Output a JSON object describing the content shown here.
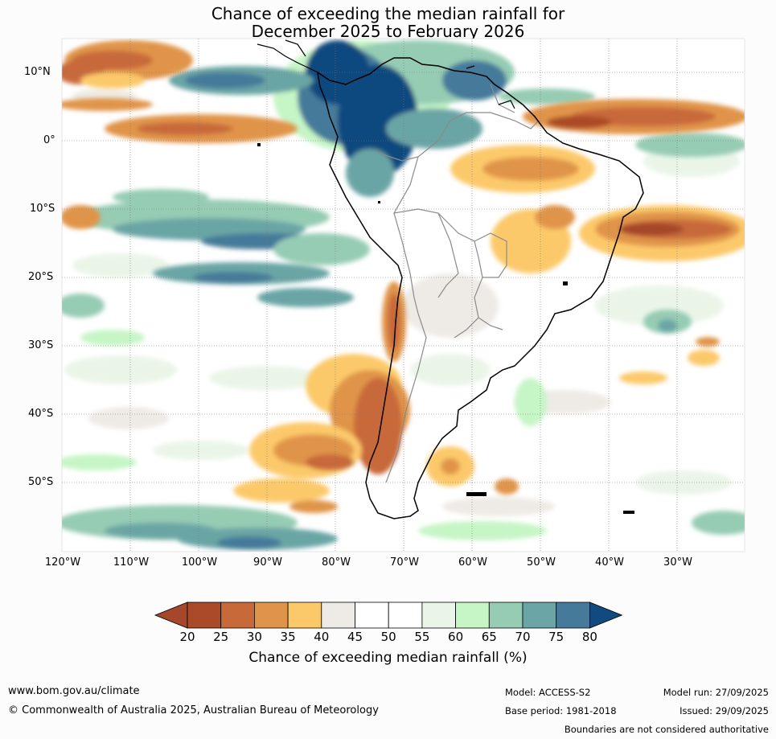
{
  "title": {
    "line1": "Chance of exceeding the median rainfall for",
    "line2": "December 2025 to February 2026"
  },
  "map": {
    "region": "South America",
    "lat_labels": [
      "10°N",
      "0°",
      "10°S",
      "20°S",
      "30°S",
      "40°S",
      "50°S"
    ],
    "lon_labels": [
      "120°W",
      "110°W",
      "100°W",
      "90°W",
      "80°W",
      "70°W",
      "60°W",
      "50°W",
      "40°W",
      "30°W"
    ]
  },
  "colorbar": {
    "ticks": [
      "20",
      "25",
      "30",
      "35",
      "40",
      "45",
      "50",
      "55",
      "60",
      "65",
      "70",
      "75",
      "80"
    ],
    "colors": [
      "#a6462a",
      "#ab4a28",
      "#c8693a",
      "#e0944a",
      "#fcc96a",
      "#eeebe6",
      "#ffffff",
      "#ffffff",
      "#eaf5e8",
      "#c6f5c6",
      "#96ccb4",
      "#6ba5a5",
      "#457a9a",
      "#114a7e"
    ],
    "label": "Chance of exceeding median rainfall (%)"
  },
  "footer": {
    "website": "www.bom.gov.au/climate",
    "copyright": "© Commonwealth of Australia 2025, Australian Bureau of Meteorology",
    "model": "Model: ACCESS-S2",
    "base_period": "Base period: 1981-2018",
    "model_run": "Model run: 27/09/2025",
    "issued": "Issued: 29/09/2025",
    "disclaimer": "Boundaries are not considered authoritative"
  }
}
